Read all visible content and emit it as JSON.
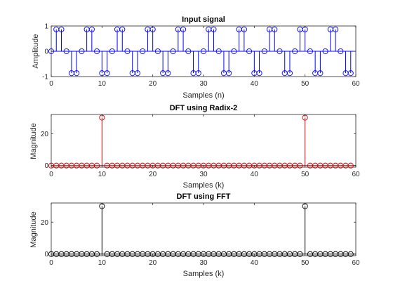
{
  "chart_data": [
    {
      "type": "stem",
      "title": "Input signal",
      "xlabel": "Samples (n)",
      "ylabel": "Amplitude",
      "xlim": [
        0,
        60
      ],
      "ylim": [
        -1,
        1
      ],
      "xticks": [
        "0",
        "10",
        "20",
        "30",
        "40",
        "50",
        "60"
      ],
      "yticks": [
        "-1",
        "0",
        "1"
      ],
      "color": "#0000ff",
      "grid": false,
      "x": [
        0,
        1,
        2,
        3,
        4,
        5,
        6,
        7,
        8,
        9,
        10,
        11,
        12,
        13,
        14,
        15,
        16,
        17,
        18,
        19,
        20,
        21,
        22,
        23,
        24,
        25,
        26,
        27,
        28,
        29,
        30,
        31,
        32,
        33,
        34,
        35,
        36,
        37,
        38,
        39,
        40,
        41,
        42,
        43,
        44,
        45,
        46,
        47,
        48,
        49,
        50,
        51,
        52,
        53,
        54,
        55,
        56,
        57,
        58,
        59
      ],
      "y": [
        0,
        0.866,
        0.866,
        0,
        -0.866,
        -0.866,
        0,
        0.866,
        0.866,
        0,
        -0.866,
        -0.866,
        0,
        0.866,
        0.866,
        0,
        -0.866,
        -0.866,
        0,
        0.866,
        0.866,
        0,
        -0.866,
        -0.866,
        0,
        0.866,
        0.866,
        0,
        -0.866,
        -0.866,
        0,
        0.866,
        0.866,
        0,
        -0.866,
        -0.866,
        0,
        0.866,
        0.866,
        0,
        -0.866,
        -0.866,
        0,
        0.866,
        0.866,
        0,
        -0.866,
        -0.866,
        0,
        0.866,
        0.866,
        0,
        -0.866,
        -0.866,
        0,
        0.866,
        0.866,
        0,
        -0.866,
        -0.866
      ]
    },
    {
      "type": "stem",
      "title": "DFT using Radix-2",
      "xlabel": "Samples (k)",
      "ylabel": "Magnitude",
      "xlim": [
        0,
        60
      ],
      "ylim": [
        0,
        30
      ],
      "xticks": [
        "0",
        "10",
        "20",
        "30",
        "40",
        "50",
        "60"
      ],
      "yticks": [
        "0",
        "20"
      ],
      "color": "#cc0000",
      "grid": false,
      "x": [
        0,
        1,
        2,
        3,
        4,
        5,
        6,
        7,
        8,
        9,
        10,
        11,
        12,
        13,
        14,
        15,
        16,
        17,
        18,
        19,
        20,
        21,
        22,
        23,
        24,
        25,
        26,
        27,
        28,
        29,
        30,
        31,
        32,
        33,
        34,
        35,
        36,
        37,
        38,
        39,
        40,
        41,
        42,
        43,
        44,
        45,
        46,
        47,
        48,
        49,
        50,
        51,
        52,
        53,
        54,
        55,
        56,
        57,
        58,
        59
      ],
      "y": [
        0,
        0,
        0,
        0,
        0,
        0,
        0,
        0,
        0,
        0,
        30,
        0,
        0,
        0,
        0,
        0,
        0,
        0,
        0,
        0,
        0,
        0,
        0,
        0,
        0,
        0,
        0,
        0,
        0,
        0,
        0,
        0,
        0,
        0,
        0,
        0,
        0,
        0,
        0,
        0,
        0,
        0,
        0,
        0,
        0,
        0,
        0,
        0,
        0,
        0,
        30,
        0,
        0,
        0,
        0,
        0,
        0,
        0,
        0,
        0
      ]
    },
    {
      "type": "stem",
      "title": "DFT using FFT",
      "xlabel": "Samples (k)",
      "ylabel": "Magnitude",
      "xlim": [
        0,
        60
      ],
      "ylim": [
        0,
        30
      ],
      "xticks": [
        "0",
        "10",
        "20",
        "30",
        "40",
        "50",
        "60"
      ],
      "yticks": [
        "0",
        "20"
      ],
      "color": "#000000",
      "grid": false,
      "x": [
        0,
        1,
        2,
        3,
        4,
        5,
        6,
        7,
        8,
        9,
        10,
        11,
        12,
        13,
        14,
        15,
        16,
        17,
        18,
        19,
        20,
        21,
        22,
        23,
        24,
        25,
        26,
        27,
        28,
        29,
        30,
        31,
        32,
        33,
        34,
        35,
        36,
        37,
        38,
        39,
        40,
        41,
        42,
        43,
        44,
        45,
        46,
        47,
        48,
        49,
        50,
        51,
        52,
        53,
        54,
        55,
        56,
        57,
        58,
        59
      ],
      "y": [
        0,
        0,
        0,
        0,
        0,
        0,
        0,
        0,
        0,
        0,
        30,
        0,
        0,
        0,
        0,
        0,
        0,
        0,
        0,
        0,
        0,
        0,
        0,
        0,
        0,
        0,
        0,
        0,
        0,
        0,
        0,
        0,
        0,
        0,
        0,
        0,
        0,
        0,
        0,
        0,
        0,
        0,
        0,
        0,
        0,
        0,
        0,
        0,
        0,
        0,
        30,
        0,
        0,
        0,
        0,
        0,
        0,
        0,
        0,
        0
      ]
    }
  ]
}
